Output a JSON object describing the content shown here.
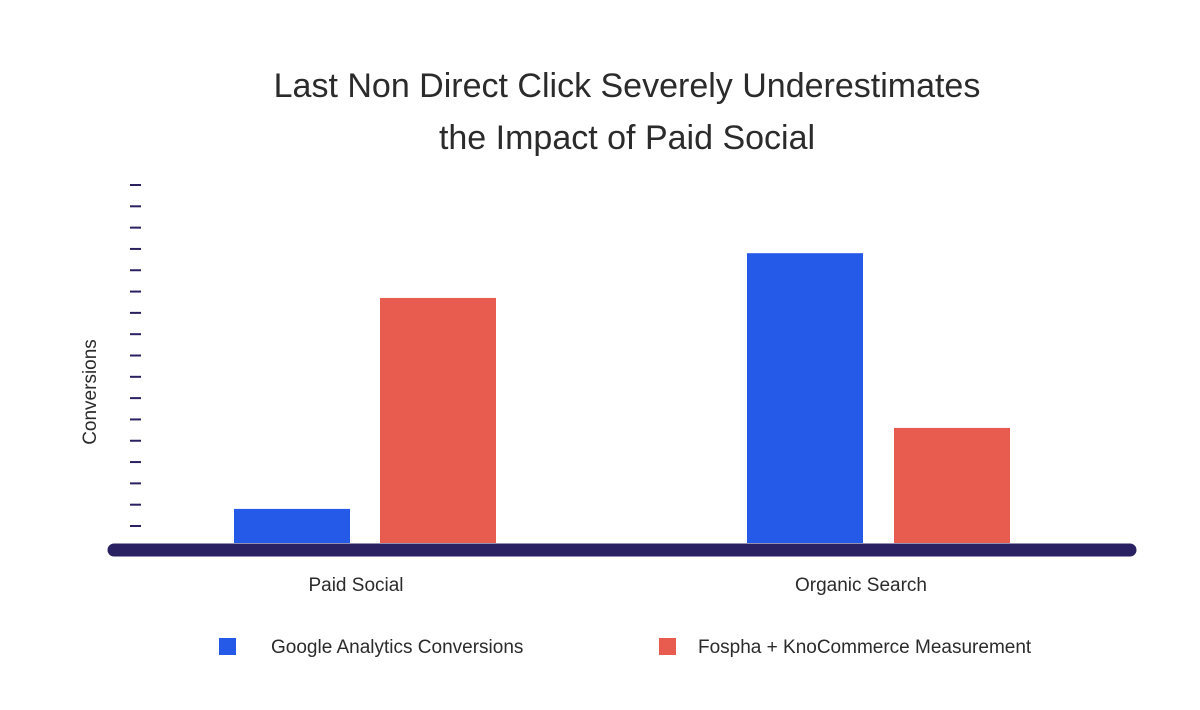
{
  "chart_data": {
    "type": "bar",
    "title": [
      "Last Non Direct Click Severely Underestimates",
      "the Impact of Paid Social"
    ],
    "ylabel": "Conversions",
    "xlabel": "",
    "categories": [
      "Paid Social",
      "Organic Search"
    ],
    "series": [
      {
        "name": "Google Analytics Conversions",
        "values": [
          8,
          68
        ],
        "color": "#2559e8"
      },
      {
        "name": "Fospha + KnoCommerce Measurement",
        "values": [
          57.5,
          27
        ],
        "color": "#e85c50"
      }
    ],
    "ylim": [
      0,
      84
    ],
    "y_tick_count": 17,
    "y_tick_labels_visible": false,
    "grid": false,
    "legend_position": "bottom",
    "colors": {
      "baseline": "#2a2163",
      "ticks": "#2a2163"
    }
  }
}
